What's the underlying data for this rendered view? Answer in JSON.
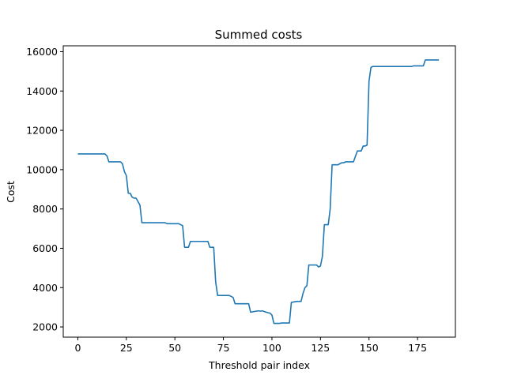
{
  "chart_data": {
    "type": "line",
    "title": "Summed costs",
    "xlabel": "Threshold pair index",
    "ylabel": "Cost",
    "xlim": [
      -7.5,
      194.5
    ],
    "ylim": [
      1480,
      16300
    ],
    "xticks": [
      0,
      25,
      50,
      75,
      100,
      125,
      150,
      175
    ],
    "yticks": [
      2000,
      4000,
      6000,
      8000,
      10000,
      12000,
      14000,
      16000
    ],
    "grid": false,
    "legend": "none",
    "color": "#1f77b4",
    "series": [
      {
        "name": "",
        "x": [
          0,
          14,
          15,
          16,
          22,
          23,
          24,
          25,
          26,
          27,
          28,
          29,
          30,
          32,
          33,
          34,
          40,
          45,
          46,
          52,
          53,
          54,
          55,
          56,
          57,
          58,
          65,
          67,
          68,
          69,
          70,
          71,
          72,
          76,
          78,
          79,
          80,
          81,
          86,
          87,
          88,
          89,
          93,
          94,
          95,
          97,
          99,
          100,
          101,
          104,
          105,
          109,
          110,
          113,
          114,
          115,
          116,
          117,
          118,
          119,
          120,
          123,
          124,
          125,
          126,
          127,
          128,
          129,
          130,
          131,
          132,
          133,
          134,
          136,
          137,
          138,
          142,
          144,
          145,
          146,
          147,
          148,
          149,
          150,
          151,
          152,
          172,
          173,
          178,
          179,
          186
        ],
        "y": [
          10800,
          10800,
          10700,
          10400,
          10400,
          10300,
          9900,
          9700,
          8800,
          8800,
          8600,
          8550,
          8550,
          8200,
          7300,
          7300,
          7300,
          7300,
          7250,
          7250,
          7200,
          7150,
          6050,
          6050,
          6050,
          6350,
          6350,
          6350,
          6050,
          6050,
          6050,
          4300,
          3600,
          3600,
          3600,
          3550,
          3500,
          3180,
          3180,
          3180,
          3180,
          2750,
          2820,
          2800,
          2820,
          2750,
          2700,
          2600,
          2180,
          2180,
          2200,
          2200,
          3250,
          3300,
          3300,
          3300,
          3700,
          4000,
          4100,
          5150,
          5150,
          5150,
          5050,
          5100,
          5600,
          7200,
          7200,
          7200,
          8000,
          10250,
          10250,
          10250,
          10250,
          10350,
          10350,
          10400,
          10400,
          10950,
          10950,
          10950,
          11200,
          11200,
          11250,
          14500,
          15200,
          15250,
          15250,
          15280,
          15280,
          15580,
          15580
        ]
      }
    ]
  }
}
